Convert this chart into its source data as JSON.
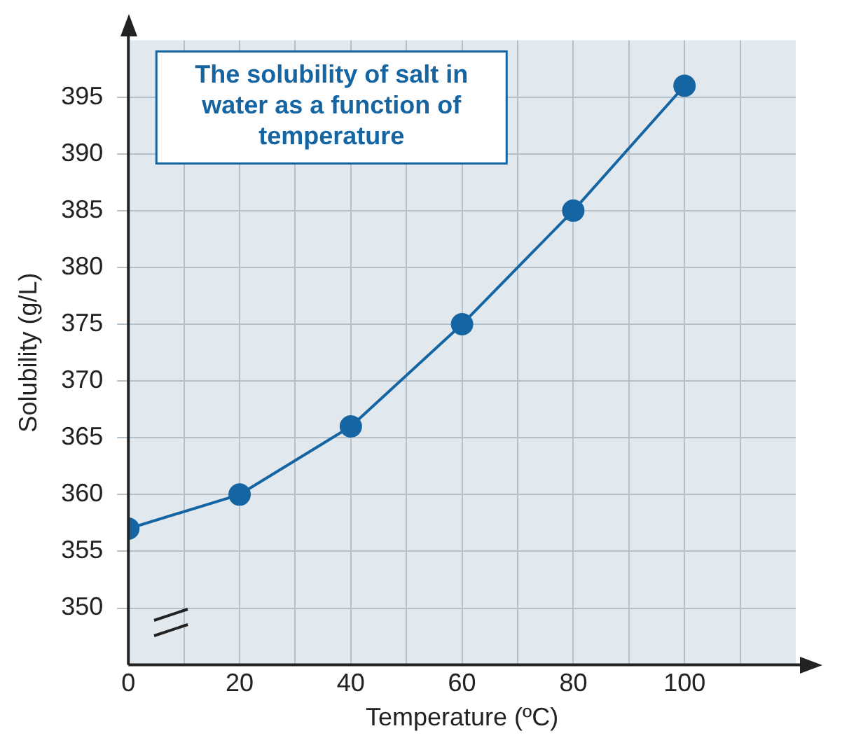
{
  "chart_data": {
    "type": "line",
    "title": "The solubility of salt in water as a function of temperature",
    "xlabel": "Temperature (ºC)",
    "ylabel": "Solubility (g/L)",
    "x": [
      0,
      20,
      40,
      60,
      80,
      100
    ],
    "series": [
      {
        "color": "#1565a3",
        "values": [
          357,
          360,
          366,
          375,
          385,
          396
        ]
      }
    ],
    "xlim": [
      0,
      120
    ],
    "xticks": [
      0,
      {
        "value": 10,
        "label": null
      },
      20,
      {
        "value": 30,
        "label": null
      },
      40,
      {
        "value": 50,
        "label": null
      },
      60,
      {
        "value": 70,
        "label": null
      },
      80,
      {
        "value": 90,
        "label": null
      },
      100,
      {
        "value": 110,
        "label": null
      }
    ],
    "ylim": [
      345,
      400
    ],
    "yticks": [
      350,
      355,
      360,
      365,
      370,
      375,
      380,
      385,
      390,
      395
    ],
    "grid": true,
    "marker": "circle",
    "line_style": "solid",
    "legend": false
  }
}
